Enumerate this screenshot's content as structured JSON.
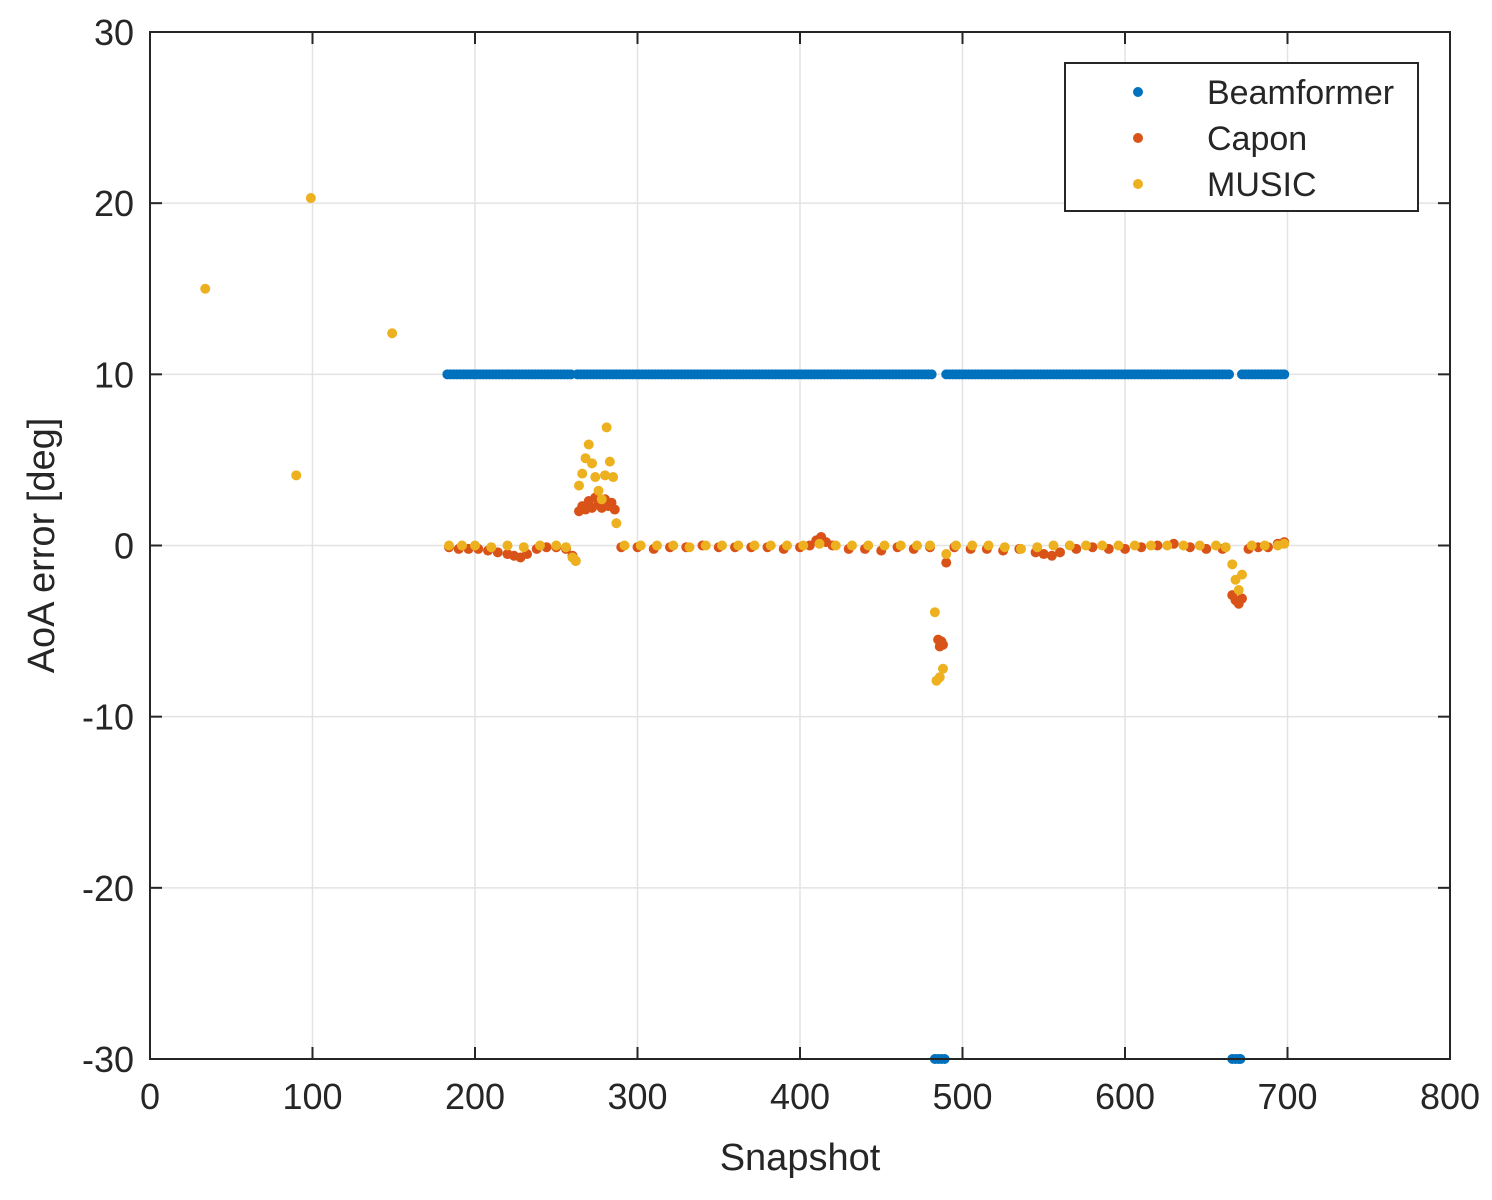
{
  "chart_data": {
    "type": "scatter",
    "xlabel": "Snapshot",
    "ylabel": "AoA error [deg]",
    "xlim": [
      0,
      800
    ],
    "ylim": [
      -30,
      30
    ],
    "xticks": [
      0,
      100,
      200,
      300,
      400,
      500,
      600,
      700,
      800
    ],
    "yticks": [
      -30,
      -20,
      -10,
      0,
      10,
      20,
      30
    ],
    "xtick_labels": [
      "0",
      "100",
      "200",
      "300",
      "400",
      "500",
      "600",
      "700",
      "800"
    ],
    "ytick_labels": [
      "-30",
      "-20",
      "-10",
      "0",
      "10",
      "20",
      "30"
    ],
    "grid": true,
    "legend_position": "top-right",
    "series": [
      {
        "name": "Beamformer",
        "color": "#0072BD",
        "segments": [
          {
            "x_from": 183,
            "x_to": 259,
            "step": 2,
            "y": 10
          },
          {
            "x_from": 263,
            "x_to": 482,
            "step": 2,
            "y": 10
          },
          {
            "x_from": 490,
            "x_to": 664,
            "step": 2,
            "y": 10
          },
          {
            "x_from": 672,
            "x_to": 698,
            "step": 2,
            "y": 10
          }
        ],
        "points": [
          [
            483,
            -30
          ],
          [
            485,
            -30
          ],
          [
            487,
            -30
          ],
          [
            489,
            -30
          ],
          [
            666,
            -30
          ],
          [
            668,
            -30
          ],
          [
            670,
            -30
          ],
          [
            671,
            -30
          ]
        ]
      },
      {
        "name": "Capon",
        "color": "#D95319",
        "points": [
          [
            184,
            -0.1
          ],
          [
            190,
            -0.2
          ],
          [
            196,
            -0.2
          ],
          [
            202,
            -0.2
          ],
          [
            208,
            -0.3
          ],
          [
            214,
            -0.4
          ],
          [
            220,
            -0.5
          ],
          [
            224,
            -0.6
          ],
          [
            228,
            -0.7
          ],
          [
            232,
            -0.5
          ],
          [
            238,
            -0.2
          ],
          [
            244,
            -0.1
          ],
          [
            250,
            -0.1
          ],
          [
            256,
            -0.2
          ],
          [
            260,
            -0.6
          ],
          [
            262,
            -0.9
          ],
          [
            264,
            2.0
          ],
          [
            266,
            2.3
          ],
          [
            268,
            2.1
          ],
          [
            270,
            2.6
          ],
          [
            272,
            2.2
          ],
          [
            274,
            2.8
          ],
          [
            276,
            2.4
          ],
          [
            278,
            2.2
          ],
          [
            280,
            2.7
          ],
          [
            282,
            2.3
          ],
          [
            284,
            2.5
          ],
          [
            286,
            2.1
          ],
          [
            290,
            -0.1
          ],
          [
            300,
            -0.1
          ],
          [
            310,
            -0.2
          ],
          [
            320,
            -0.1
          ],
          [
            330,
            -0.1
          ],
          [
            340,
            0.0
          ],
          [
            350,
            -0.1
          ],
          [
            360,
            -0.1
          ],
          [
            370,
            -0.1
          ],
          [
            380,
            -0.1
          ],
          [
            390,
            -0.2
          ],
          [
            400,
            -0.1
          ],
          [
            406,
            0.0
          ],
          [
            410,
            0.3
          ],
          [
            413,
            0.5
          ],
          [
            416,
            0.2
          ],
          [
            420,
            0.0
          ],
          [
            430,
            -0.2
          ],
          [
            440,
            -0.2
          ],
          [
            450,
            -0.3
          ],
          [
            460,
            -0.1
          ],
          [
            470,
            -0.2
          ],
          [
            480,
            -0.1
          ],
          [
            485,
            -5.5
          ],
          [
            486,
            -5.9
          ],
          [
            487,
            -5.6
          ],
          [
            488,
            -5.8
          ],
          [
            490,
            -1.0
          ],
          [
            495,
            -0.1
          ],
          [
            505,
            -0.2
          ],
          [
            515,
            -0.2
          ],
          [
            525,
            -0.3
          ],
          [
            535,
            -0.2
          ],
          [
            545,
            -0.4
          ],
          [
            550,
            -0.5
          ],
          [
            555,
            -0.6
          ],
          [
            560,
            -0.4
          ],
          [
            570,
            -0.2
          ],
          [
            580,
            -0.1
          ],
          [
            590,
            -0.2
          ],
          [
            600,
            -0.2
          ],
          [
            610,
            -0.1
          ],
          [
            620,
            0.0
          ],
          [
            630,
            0.1
          ],
          [
            640,
            -0.1
          ],
          [
            650,
            -0.2
          ],
          [
            660,
            -0.2
          ],
          [
            666,
            -2.9
          ],
          [
            668,
            -3.2
          ],
          [
            670,
            -3.4
          ],
          [
            672,
            -3.1
          ],
          [
            676,
            -0.2
          ],
          [
            682,
            -0.1
          ],
          [
            688,
            -0.1
          ],
          [
            694,
            0.1
          ],
          [
            698,
            0.2
          ]
        ]
      },
      {
        "name": "MUSIC",
        "color": "#EDB120",
        "points": [
          [
            34,
            15.0
          ],
          [
            90,
            4.1
          ],
          [
            99,
            20.3
          ],
          [
            149,
            12.4
          ],
          [
            184,
            0.0
          ],
          [
            192,
            0.0
          ],
          [
            200,
            0.0
          ],
          [
            210,
            -0.1
          ],
          [
            220,
            0.0
          ],
          [
            230,
            -0.1
          ],
          [
            240,
            0.0
          ],
          [
            250,
            0.0
          ],
          [
            256,
            -0.1
          ],
          [
            260,
            -0.7
          ],
          [
            262,
            -0.9
          ],
          [
            264,
            3.5
          ],
          [
            266,
            4.2
          ],
          [
            268,
            5.1
          ],
          [
            270,
            5.9
          ],
          [
            272,
            4.8
          ],
          [
            274,
            4.0
          ],
          [
            276,
            3.2
          ],
          [
            278,
            2.7
          ],
          [
            280,
            4.1
          ],
          [
            281,
            6.9
          ],
          [
            283,
            4.9
          ],
          [
            285,
            4.0
          ],
          [
            287,
            1.3
          ],
          [
            292,
            0.0
          ],
          [
            302,
            0.0
          ],
          [
            312,
            0.0
          ],
          [
            322,
            0.0
          ],
          [
            332,
            -0.1
          ],
          [
            342,
            0.0
          ],
          [
            352,
            0.0
          ],
          [
            362,
            0.0
          ],
          [
            372,
            0.0
          ],
          [
            382,
            0.0
          ],
          [
            392,
            0.0
          ],
          [
            402,
            0.0
          ],
          [
            412,
            0.1
          ],
          [
            422,
            0.0
          ],
          [
            432,
            0.0
          ],
          [
            442,
            0.0
          ],
          [
            452,
            0.0
          ],
          [
            462,
            0.0
          ],
          [
            472,
            0.0
          ],
          [
            480,
            0.0
          ],
          [
            483,
            -3.9
          ],
          [
            484,
            -7.9
          ],
          [
            486,
            -7.7
          ],
          [
            488,
            -7.2
          ],
          [
            490,
            -0.5
          ],
          [
            496,
            0.0
          ],
          [
            506,
            0.0
          ],
          [
            516,
            0.0
          ],
          [
            526,
            -0.1
          ],
          [
            536,
            -0.2
          ],
          [
            546,
            -0.1
          ],
          [
            556,
            0.0
          ],
          [
            566,
            0.0
          ],
          [
            576,
            0.0
          ],
          [
            586,
            0.0
          ],
          [
            596,
            0.0
          ],
          [
            606,
            0.0
          ],
          [
            616,
            0.0
          ],
          [
            626,
            0.0
          ],
          [
            636,
            0.0
          ],
          [
            646,
            0.0
          ],
          [
            656,
            0.0
          ],
          [
            662,
            -0.1
          ],
          [
            666,
            -1.1
          ],
          [
            668,
            -2.0
          ],
          [
            670,
            -2.6
          ],
          [
            672,
            -1.7
          ],
          [
            678,
            0.0
          ],
          [
            686,
            0.0
          ],
          [
            694,
            0.0
          ],
          [
            698,
            0.1
          ]
        ]
      }
    ]
  }
}
